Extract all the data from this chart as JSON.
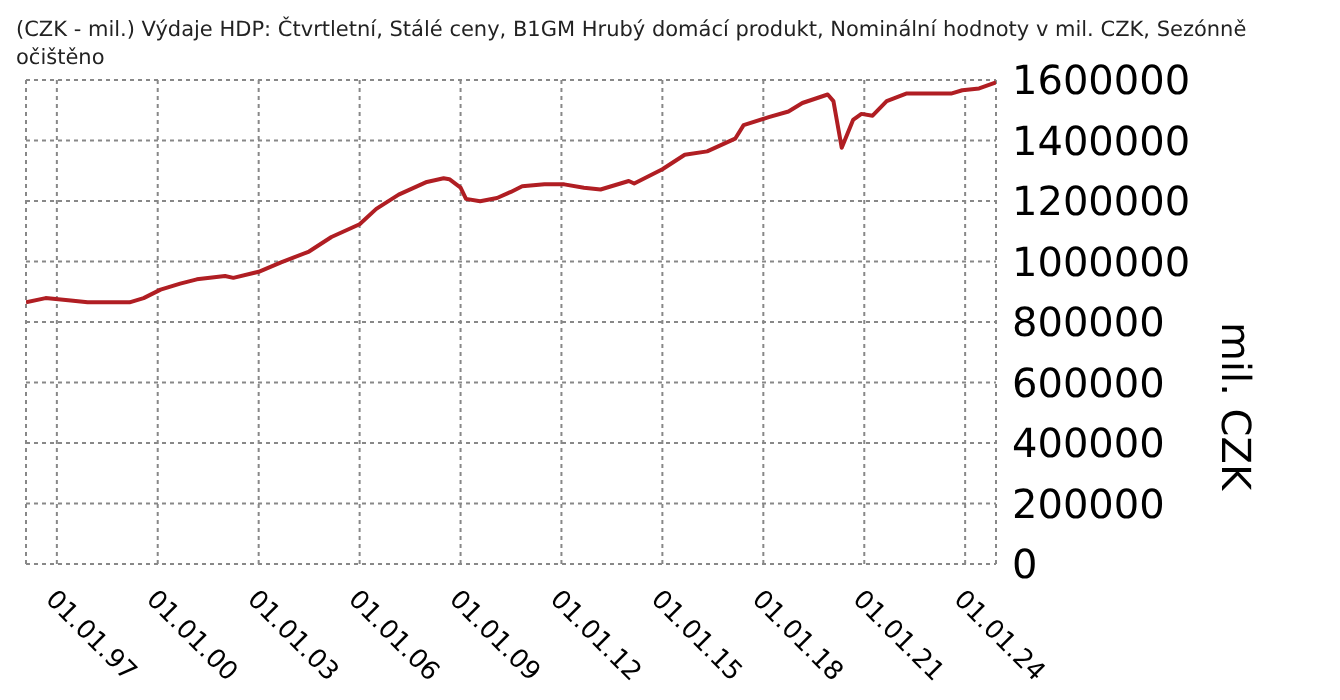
{
  "chart_data": {
    "type": "line",
    "title": "(CZK - mil.) Výdaje HDP: Čtvrtletní, Stálé ceny, B1GM Hrubý domácí produkt, Nominální hodnoty v mil. CZK, Sezónně očištěno",
    "ylabel": "mil. CZK",
    "x": [
      "1996-02",
      "1996-09",
      "1997-06",
      "1997-12",
      "1999-03",
      "1999-08",
      "2000-02",
      "2000-09",
      "2001-03",
      "2002-01",
      "2002-04",
      "2003-01",
      "2003-09",
      "2004-07",
      "2005-03",
      "2006-01",
      "2006-07",
      "2007-03",
      "2008-01",
      "2008-07",
      "2008-09",
      "2009-01",
      "2009-03",
      "2009-08",
      "2010-02",
      "2010-07",
      "2010-11",
      "2011-07",
      "2012-02",
      "2012-09",
      "2013-03",
      "2014-01",
      "2014-03",
      "2015-01",
      "2015-09",
      "2016-05",
      "2017-03",
      "2017-06",
      "2018-03",
      "2018-10",
      "2019-03",
      "2019-12",
      "2020-02",
      "2020-05",
      "2020-09",
      "2020-12",
      "2021-04",
      "2021-09",
      "2022-04",
      "2023-08",
      "2023-12",
      "2024-06",
      "2024-12"
    ],
    "series": [
      {
        "color": "#b01e23",
        "values": [
          865000,
          879000,
          871000,
          865000,
          865000,
          879000,
          907000,
          927000,
          941000,
          952000,
          946000,
          966000,
          997000,
          1033000,
          1081000,
          1123000,
          1174000,
          1221000,
          1263000,
          1275000,
          1272000,
          1244000,
          1207000,
          1199000,
          1210000,
          1230000,
          1249000,
          1255000,
          1255000,
          1244000,
          1238000,
          1266000,
          1258000,
          1305000,
          1353000,
          1364000,
          1406000,
          1451000,
          1477000,
          1496000,
          1524000,
          1552000,
          1530000,
          1376000,
          1468000,
          1488000,
          1482000,
          1530000,
          1555000,
          1555000,
          1566000,
          1572000,
          1592000
        ]
      }
    ],
    "xlim": [
      "1996-02",
      "2024-12"
    ],
    "xticks": [
      {
        "value": "1997-01-01",
        "label": "01.01.97"
      },
      {
        "value": "2000-01-01",
        "label": "01.01.00"
      },
      {
        "value": "2003-01-01",
        "label": "01.01.03"
      },
      {
        "value": "2006-01-01",
        "label": "01.01.06"
      },
      {
        "value": "2009-01-01",
        "label": "01.01.09"
      },
      {
        "value": "2012-01-01",
        "label": "01.01.12"
      },
      {
        "value": "2015-01-01",
        "label": "01.01.15"
      },
      {
        "value": "2018-01-01",
        "label": "01.01.18"
      },
      {
        "value": "2021-01-01",
        "label": "01.01.21"
      },
      {
        "value": "2024-01-01",
        "label": "01.01.24"
      }
    ],
    "ylim": [
      0,
      1600000
    ],
    "yticks": [
      0,
      200000,
      400000,
      600000,
      800000,
      1000000,
      1200000,
      1400000,
      1600000
    ],
    "grid": true,
    "legend": false,
    "marker": "none",
    "line_style": "solid"
  }
}
